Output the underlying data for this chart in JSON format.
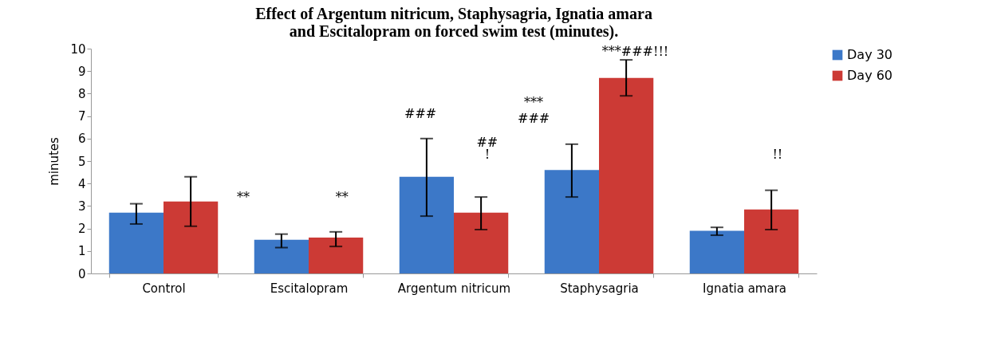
{
  "chart_data": {
    "type": "bar",
    "title": "Effect of Argentum nitricum, Staphysagria, Ignatia amara and Escitalopram on forced swim test (minutes).",
    "ylabel": "minutes",
    "categories": [
      "Control",
      "Escitalopram",
      "Argentum nitricum",
      "Staphysagria",
      "Ignatia amara"
    ],
    "series": [
      {
        "name": "Day 30",
        "color": "#3c78c8",
        "values": [
          2.7,
          1.5,
          4.3,
          4.6,
          1.9
        ],
        "errors": [
          [
            2.2,
            3.1
          ],
          [
            1.15,
            1.75
          ],
          [
            2.55,
            6.0
          ],
          [
            3.4,
            5.75
          ],
          [
            1.7,
            2.05
          ]
        ]
      },
      {
        "name": "Day 60",
        "color": "#cc3a35",
        "values": [
          3.2,
          1.6,
          2.7,
          8.7,
          2.85
        ],
        "errors": [
          [
            2.1,
            4.3
          ],
          [
            1.2,
            1.85
          ],
          [
            1.95,
            3.4
          ],
          [
            7.9,
            9.5
          ],
          [
            1.95,
            3.7
          ]
        ]
      }
    ],
    "ylim": [
      0,
      10
    ],
    "yticks": [
      0,
      1,
      2,
      3,
      4,
      5,
      6,
      7,
      8,
      9,
      10
    ],
    "grid": false,
    "legend": "right",
    "annotations": [
      "**",
      "**",
      "###",
      "##",
      "!",
      "***",
      "###",
      "***###!!!",
      "!!"
    ]
  }
}
